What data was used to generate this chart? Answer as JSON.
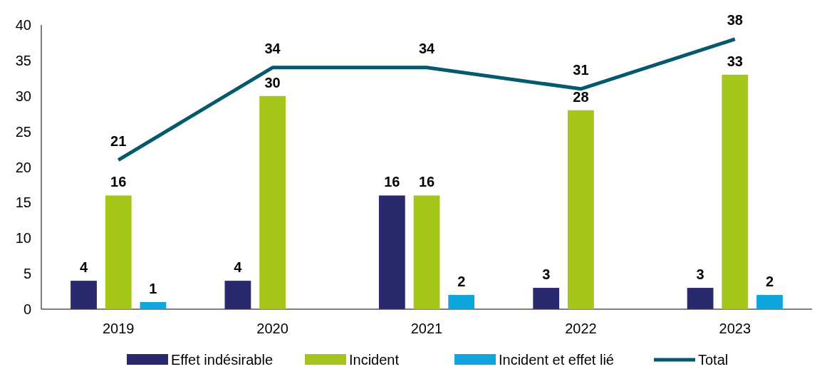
{
  "chart_data": {
    "type": "bar",
    "categories": [
      "2019",
      "2020",
      "2021",
      "2022",
      "2023"
    ],
    "series": [
      {
        "name": "Effet indésirable",
        "color": "#29296e",
        "values": [
          4,
          4,
          16,
          3,
          3
        ]
      },
      {
        "name": "Incident",
        "color": "#a3c619",
        "values": [
          16,
          30,
          16,
          28,
          33
        ]
      },
      {
        "name": "Incident et effet lié",
        "color": "#0fa6e0",
        "values": [
          1,
          null,
          2,
          null,
          2
        ]
      },
      {
        "name": "Total",
        "type": "line",
        "color": "#045a6c",
        "values": [
          21,
          34,
          34,
          31,
          38
        ]
      }
    ],
    "ylim": [
      0,
      40
    ],
    "yticks": [
      0,
      5,
      10,
      15,
      20,
      25,
      30,
      35,
      40
    ],
    "data_labels": true,
    "legend": "bottom"
  }
}
